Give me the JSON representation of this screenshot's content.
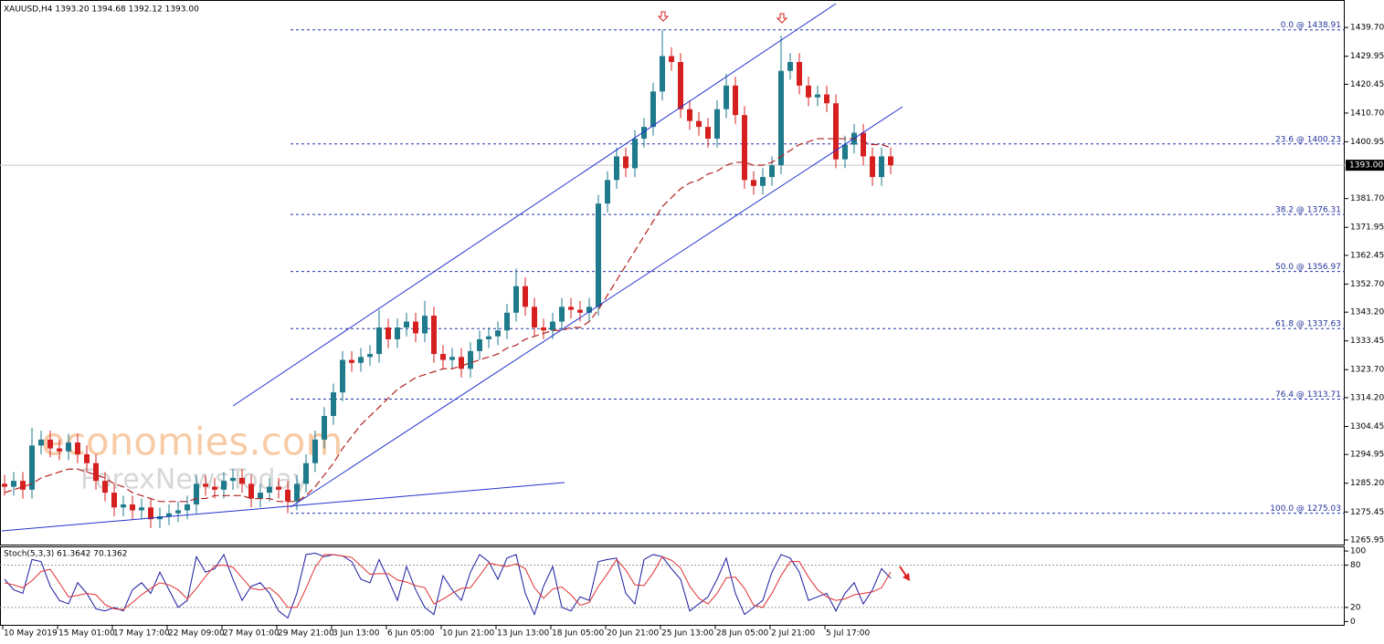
{
  "chart_data": [
    {
      "type": "candlestick",
      "title": "XAUUSD,H4  1393.20 1394.68 1392.12 1393.00",
      "up_color": "#1f7a8c",
      "down_color": "#d62020",
      "open": [
        1285,
        1284,
        1286,
        1283,
        1298,
        1300,
        1297,
        1296,
        1299,
        1295,
        1292,
        1286,
        1282,
        1277,
        1278,
        1276,
        1277,
        1273,
        1274,
        1275,
        1276,
        1278,
        1285,
        1284,
        1283,
        1286,
        1287,
        1285,
        1280,
        1282,
        1284,
        1283,
        1279,
        1285,
        1292,
        1300,
        1308,
        1316,
        1327,
        1326,
        1328,
        1329,
        1338,
        1334,
        1338,
        1340,
        1336,
        1342,
        1329,
        1327,
        1328,
        1324,
        1330,
        1334,
        1335,
        1337,
        1343,
        1352,
        1345,
        1338,
        1337,
        1340,
        1345,
        1344,
        1343,
        1345,
        1380,
        1388,
        1396,
        1392,
        1402,
        1406,
        1418,
        1430,
        1428,
        1412,
        1408,
        1406,
        1402,
        1412,
        1420,
        1410,
        1388,
        1386,
        1389,
        1393,
        1425,
        1428,
        1420,
        1416,
        1417,
        1414,
        1395,
        1400,
        1404,
        1396,
        1389,
        1396
      ],
      "high": [
        1288,
        1289,
        1289,
        1304,
        1303,
        1303,
        1300,
        1302,
        1302,
        1298,
        1295,
        1289,
        1285,
        1281,
        1281,
        1280,
        1280,
        1277,
        1278,
        1279,
        1281,
        1288,
        1288,
        1287,
        1289,
        1290,
        1290,
        1288,
        1285,
        1287,
        1287,
        1286,
        1288,
        1295,
        1303,
        1311,
        1319,
        1330,
        1330,
        1331,
        1332,
        1344,
        1341,
        1341,
        1343,
        1343,
        1347,
        1345,
        1332,
        1331,
        1331,
        1333,
        1337,
        1338,
        1340,
        1346,
        1358,
        1355,
        1348,
        1341,
        1343,
        1348,
        1348,
        1347,
        1348,
        1383,
        1391,
        1399,
        1399,
        1405,
        1409,
        1421,
        1438.91,
        1433,
        1431,
        1415,
        1411,
        1409,
        1415,
        1424,
        1423,
        1413,
        1391,
        1392,
        1396,
        1437,
        1431,
        1431,
        1423,
        1420,
        1420,
        1417,
        1403,
        1407,
        1407,
        1399,
        1399,
        1399
      ],
      "low": [
        1281,
        1281,
        1280,
        1280,
        1295,
        1294,
        1293,
        1293,
        1292,
        1289,
        1283,
        1279,
        1274,
        1274,
        1273,
        1273,
        1270,
        1270,
        1271,
        1272,
        1273,
        1275,
        1281,
        1280,
        1280,
        1283,
        1282,
        1277,
        1277,
        1279,
        1280,
        1275.03,
        1276,
        1282,
        1289,
        1297,
        1305,
        1313,
        1323,
        1323,
        1325,
        1326,
        1331,
        1331,
        1335,
        1333,
        1333,
        1326,
        1324,
        1324,
        1321,
        1321,
        1327,
        1331,
        1332,
        1334,
        1340,
        1342,
        1335,
        1334,
        1334,
        1337,
        1341,
        1340,
        1340,
        1342,
        1377,
        1385,
        1389,
        1389,
        1399,
        1403,
        1415,
        1425,
        1409,
        1405,
        1403,
        1399,
        1399,
        1409,
        1407,
        1385,
        1383,
        1383,
        1386,
        1390,
        1422,
        1417,
        1413,
        1413,
        1411,
        1392,
        1392,
        1397,
        1393,
        1386,
        1386,
        1390
      ],
      "close": [
        1284,
        1286,
        1283,
        1298,
        1300,
        1297,
        1296,
        1299,
        1295,
        1292,
        1286,
        1282,
        1277,
        1278,
        1276,
        1277,
        1273,
        1274,
        1275,
        1276,
        1278,
        1285,
        1284,
        1283,
        1286,
        1287,
        1285,
        1280,
        1282,
        1284,
        1283,
        1279,
        1285,
        1292,
        1300,
        1308,
        1316,
        1327,
        1326,
        1328,
        1329,
        1338,
        1334,
        1338,
        1340,
        1336,
        1342,
        1329,
        1327,
        1328,
        1324,
        1330,
        1334,
        1335,
        1337,
        1343,
        1352,
        1345,
        1338,
        1337,
        1340,
        1345,
        1344,
        1343,
        1345,
        1380,
        1388,
        1396,
        1392,
        1402,
        1406,
        1418,
        1430,
        1428,
        1412,
        1408,
        1406,
        1402,
        1412,
        1420,
        1410,
        1388,
        1386,
        1389,
        1393,
        1425,
        1428,
        1420,
        1416,
        1417,
        1414,
        1395,
        1400,
        1404,
        1396,
        1389,
        1396,
        1393
      ],
      "moving_average": {
        "color": "#b22222",
        "values": [
          1282,
          1283,
          1284,
          1285,
          1287,
          1288,
          1289,
          1290,
          1290,
          1289,
          1288,
          1287,
          1285,
          1284,
          1282,
          1281,
          1280,
          1279,
          1279,
          1279,
          1279,
          1280,
          1280,
          1281,
          1281,
          1281,
          1281,
          1280,
          1280,
          1280,
          1279,
          1279,
          1279,
          1281,
          1284,
          1288,
          1292,
          1297,
          1301,
          1305,
          1308,
          1311,
          1314,
          1317,
          1319,
          1321,
          1322,
          1323,
          1324,
          1324,
          1325,
          1326,
          1327,
          1328,
          1329,
          1331,
          1332,
          1334,
          1335,
          1336,
          1337,
          1337,
          1338,
          1338,
          1340,
          1344,
          1349,
          1354,
          1359,
          1364,
          1369,
          1374,
          1379,
          1382,
          1385,
          1387,
          1388,
          1390,
          1391,
          1393,
          1394,
          1394,
          1393,
          1393,
          1394,
          1396,
          1398,
          1400,
          1401,
          1402,
          1402,
          1402,
          1402,
          1402,
          1401,
          1400,
          1400,
          1399
        ]
      },
      "ylim": [
        1264.4,
        1448.4
      ],
      "yticks": [
        {
          "value": 1439.7,
          "label": "1439.70"
        },
        {
          "value": 1429.95,
          "label": "1429.95"
        },
        {
          "value": 1420.45,
          "label": "1420.45"
        },
        {
          "value": 1410.7,
          "label": "1410.70"
        },
        {
          "value": 1400.95,
          "label": "1400.95"
        },
        {
          "value": 1381.7,
          "label": "1381.70"
        },
        {
          "value": 1371.95,
          "label": "1371.95"
        },
        {
          "value": 1362.45,
          "label": "1362.45"
        },
        {
          "value": 1352.7,
          "label": "1352.70"
        },
        {
          "value": 1343.2,
          "label": "1343.20"
        },
        {
          "value": 1333.45,
          "label": "1333.45"
        },
        {
          "value": 1323.7,
          "label": "1323.70"
        },
        {
          "value": 1314.2,
          "label": "1314.20"
        },
        {
          "value": 1304.45,
          "label": "1304.45"
        },
        {
          "value": 1294.95,
          "label": "1294.95"
        },
        {
          "value": 1285.2,
          "label": "1285.20"
        },
        {
          "value": 1275.45,
          "label": "1275.45"
        },
        {
          "value": 1265.95,
          "label": "1265.95"
        }
      ],
      "fib_levels": [
        {
          "value": 1438.91,
          "label": "0.0 @ 1438.91"
        },
        {
          "value": 1400.23,
          "label": "23.6 @ 1400.23"
        },
        {
          "value": 1376.31,
          "label": "38.2 @ 1376.31"
        },
        {
          "value": 1356.97,
          "label": "50.0 @ 1356.97"
        },
        {
          "value": 1337.63,
          "label": "61.8 @ 1337.63"
        },
        {
          "value": 1313.71,
          "label": "76.4 @ 1313.71"
        },
        {
          "value": 1275.03,
          "label": "100.0 @ 1275.03"
        }
      ],
      "last_price": {
        "value": 1393.0,
        "label": "1393.00"
      },
      "watermark": [
        "economies.com",
        "ForexNewsToday"
      ]
    },
    {
      "type": "line",
      "title": "Stoch(5,3,3) 61.3642 70.1362",
      "categories": [
        "10 May 2019",
        null,
        null,
        null,
        null,
        null,
        "15 May 01:00",
        null,
        null,
        null,
        null,
        null,
        "17 May 17:00",
        null,
        null,
        null,
        null,
        null,
        "22 May 09:00",
        null,
        null,
        null,
        null,
        null,
        "27 May 01:00",
        null,
        null,
        null,
        null,
        null,
        "29 May 21:00",
        null,
        null,
        null,
        null,
        null,
        "3 Jun 13:00",
        null,
        null,
        null,
        null,
        null,
        "6 Jun 05:00",
        null,
        null,
        null,
        null,
        null,
        "10 Jun 21:00",
        null,
        null,
        null,
        null,
        null,
        "13 Jun 13:00",
        null,
        null,
        null,
        null,
        null,
        "18 Jun 05:00",
        null,
        null,
        null,
        null,
        null,
        "20 Jun 21:00",
        null,
        null,
        null,
        null,
        null,
        "25 Jun 13:00",
        null,
        null,
        null,
        null,
        null,
        "28 Jun 05:00",
        null,
        null,
        null,
        null,
        null,
        "2 Jul 21:00",
        null,
        null,
        null,
        null,
        null,
        "5 Jul 17:00",
        null,
        null,
        null,
        null,
        null,
        null,
        null
      ],
      "series": [
        {
          "color": "#1a1aa0",
          "values": [
            60,
            45,
            40,
            88,
            85,
            50,
            30,
            25,
            55,
            40,
            18,
            15,
            20,
            15,
            45,
            55,
            40,
            70,
            45,
            20,
            30,
            92,
            70,
            75,
            95,
            60,
            30,
            50,
            55,
            40,
            15,
            5,
            40,
            95,
            97,
            92,
            95,
            93,
            85,
            60,
            55,
            88,
            60,
            30,
            78,
            45,
            20,
            10,
            65,
            45,
            30,
            70,
            95,
            85,
            60,
            90,
            95,
            40,
            10,
            50,
            78,
            20,
            15,
            35,
            30,
            85,
            88,
            90,
            40,
            25,
            88,
            95,
            92,
            75,
            60,
            15,
            25,
            35,
            60,
            90,
            40,
            10,
            20,
            30,
            70,
            95,
            90,
            70,
            30,
            35,
            40,
            15,
            40,
            55,
            25,
            45,
            75,
            61.3642
          ]
        },
        {
          "color": "#e03030",
          "values": [
            55,
            52,
            48,
            58,
            71,
            74,
            55,
            35,
            37,
            40,
            38,
            24,
            18,
            17,
            27,
            38,
            47,
            55,
            52,
            45,
            32,
            47,
            64,
            79,
            80,
            77,
            62,
            47,
            45,
            48,
            37,
            20,
            20,
            47,
            77,
            95,
            95,
            93,
            91,
            79,
            67,
            68,
            68,
            59,
            56,
            51,
            48,
            25,
            32,
            40,
            47,
            48,
            65,
            83,
            80,
            78,
            82,
            75,
            48,
            33,
            46,
            49,
            38,
            23,
            27,
            50,
            68,
            88,
            73,
            52,
            51,
            69,
            92,
            87,
            76,
            50,
            33,
            25,
            40,
            62,
            63,
            47,
            23,
            20,
            40,
            65,
            85,
            85,
            63,
            45,
            35,
            30,
            32,
            38,
            40,
            42,
            48,
            70.1362
          ]
        }
      ],
      "ylim": [
        -6,
        104
      ],
      "yticks": [
        0,
        20,
        80,
        100
      ],
      "levels": [
        20,
        80
      ]
    }
  ]
}
